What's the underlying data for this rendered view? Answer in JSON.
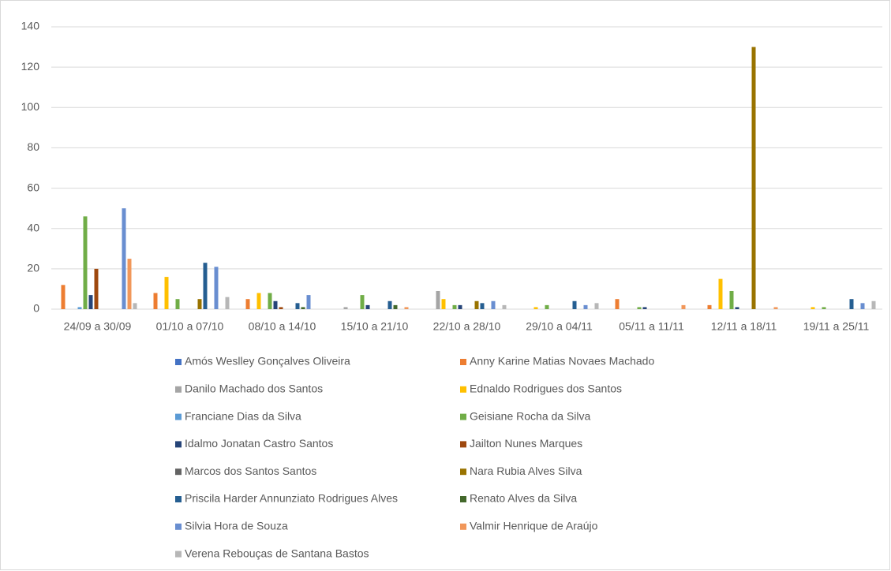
{
  "chart_data": {
    "type": "bar",
    "categories": [
      "24/09 a 30/09",
      "01/10 a 07/10",
      "08/10 a 14/10",
      "15/10 a 21/10",
      "22/10 a 28/10",
      "29/10 a 04/11",
      "05/11 a 11/11",
      "12/11 a 18/11",
      "19/11 a 25/11"
    ],
    "series": [
      {
        "name": "Amós Weslley Gonçalves Oliveira",
        "color": "#4472c4",
        "values": [
          0,
          0,
          0,
          0,
          0,
          0,
          0,
          0,
          0
        ]
      },
      {
        "name": "Anny Karine Matias Novaes Machado",
        "color": "#ed7d31",
        "values": [
          12,
          8,
          5,
          0,
          0,
          0,
          5,
          2,
          0
        ]
      },
      {
        "name": "Danilo Machado dos Santos",
        "color": "#a5a5a5",
        "values": [
          0,
          0,
          0,
          1,
          9,
          0,
          0,
          0,
          0
        ]
      },
      {
        "name": "Ednaldo Rodrigues dos Santos",
        "color": "#ffc000",
        "values": [
          0,
          16,
          8,
          0,
          5,
          1,
          0,
          15,
          1
        ]
      },
      {
        "name": "Franciane Dias da Silva",
        "color": "#5b9bd5",
        "values": [
          1,
          0,
          0,
          0,
          0,
          0,
          0,
          0,
          0
        ]
      },
      {
        "name": "Geisiane Rocha da Silva",
        "color": "#70ad47",
        "values": [
          46,
          5,
          8,
          7,
          2,
          2,
          1,
          9,
          1
        ]
      },
      {
        "name": "Idalmo Jonatan Castro Santos",
        "color": "#264478",
        "values": [
          7,
          0,
          4,
          2,
          2,
          0,
          1,
          1,
          0
        ]
      },
      {
        "name": "Jailton Nunes Marques",
        "color": "#9e480e",
        "values": [
          20,
          0,
          1,
          0,
          0,
          0,
          0,
          0,
          0
        ]
      },
      {
        "name": "Marcos dos Santos Santos",
        "color": "#636363",
        "values": [
          0,
          0,
          0,
          0,
          0,
          0,
          0,
          0,
          0
        ]
      },
      {
        "name": "Nara Rubia Alves Silva",
        "color": "#997300",
        "values": [
          0,
          5,
          0,
          0,
          4,
          0,
          0,
          130,
          0
        ]
      },
      {
        "name": "Priscila Harder Annunziato Rodrigues Alves",
        "color": "#255e91",
        "values": [
          0,
          23,
          3,
          4,
          3,
          4,
          0,
          0,
          5
        ]
      },
      {
        "name": "Renato Alves da Silva",
        "color": "#43682b",
        "values": [
          0,
          0,
          1,
          2,
          0,
          0,
          0,
          0,
          0
        ]
      },
      {
        "name": "Silvia Hora de Souza",
        "color": "#698ed0",
        "values": [
          50,
          21,
          7,
          0,
          4,
          2,
          0,
          0,
          3
        ]
      },
      {
        "name": "Valmir Henrique de Araújo",
        "color": "#f1975a",
        "values": [
          25,
          0,
          0,
          1,
          0,
          0,
          2,
          1,
          0
        ]
      },
      {
        "name": "Verena Rebouças de Santana Bastos",
        "color": "#b7b7b7",
        "values": [
          3,
          6,
          0,
          0,
          2,
          3,
          0,
          0,
          4
        ]
      }
    ],
    "ylim": [
      0,
      140
    ],
    "yticks": [
      0,
      20,
      40,
      60,
      80,
      100,
      120,
      140
    ],
    "grid": true,
    "legend": "bottom"
  }
}
